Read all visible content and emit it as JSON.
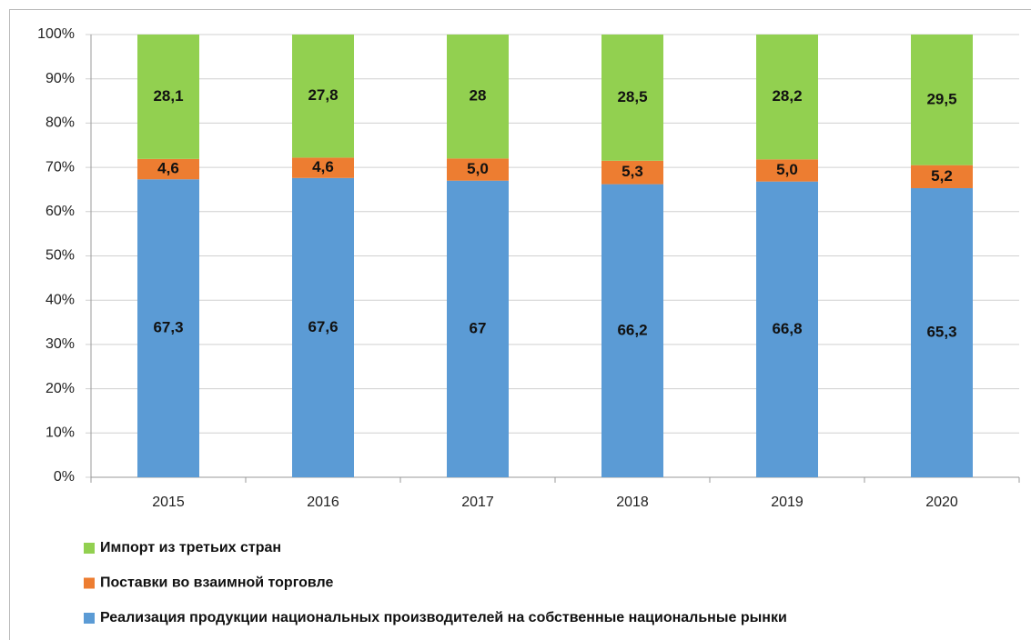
{
  "chart_data": {
    "type": "stacked_bar",
    "categories": [
      "2015",
      "2016",
      "2017",
      "2018",
      "2019",
      "2020"
    ],
    "series": [
      {
        "name": "Реализация продукции национальных производителей на собственные национальные рынки",
        "color": "#5b9bd5",
        "values": [
          67.3,
          67.6,
          67,
          66.2,
          66.8,
          65.3
        ],
        "value_labels": [
          "67,3",
          "67,6",
          "67",
          "66,2",
          "66,8",
          "65,3"
        ]
      },
      {
        "name": "Поставки во взаимной торговле",
        "color": "#ed7d31",
        "values": [
          4.6,
          4.6,
          5.0,
          5.3,
          5.0,
          5.2
        ],
        "value_labels": [
          "4,6",
          "4,6",
          "5,0",
          "5,3",
          "5,0",
          "5,2"
        ]
      },
      {
        "name": "Импорт из третьих стран",
        "color": "#92d050",
        "values": [
          28.1,
          27.8,
          28,
          28.5,
          28.2,
          29.5
        ],
        "value_labels": [
          "28,1",
          "27,8",
          "28",
          "28,5",
          "28,2",
          "29,5"
        ]
      }
    ],
    "ylim": [
      0,
      100
    ],
    "yticks": [
      {
        "value": 0,
        "label": "0%"
      },
      {
        "value": 10,
        "label": "10%"
      },
      {
        "value": 20,
        "label": "20%"
      },
      {
        "value": 30,
        "label": "30%"
      },
      {
        "value": 40,
        "label": "40%"
      },
      {
        "value": 50,
        "label": "50%"
      },
      {
        "value": 60,
        "label": "60%"
      },
      {
        "value": 70,
        "label": "70%"
      },
      {
        "value": 80,
        "label": "80%"
      },
      {
        "value": 90,
        "label": "90%"
      },
      {
        "value": 100,
        "label": "100%"
      }
    ],
    "grid": true,
    "legend": "bottom"
  }
}
